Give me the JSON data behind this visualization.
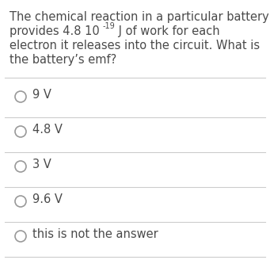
{
  "background_color": "#ffffff",
  "question_line1": "The chemical reaction in a particular battery",
  "question_line2_normal": "provides 4.8 10",
  "question_line2_super": "-19",
  "question_line2_end": " J of work for each",
  "question_line3": "electron it releases into the circuit. What is",
  "question_line4": "the battery’s emf?",
  "options": [
    "9 V",
    "4.8 V",
    "3 V",
    "9.6 V",
    "this is not the answer"
  ],
  "text_color": "#4a4a4a",
  "circle_color": "#999999",
  "line_color": "#cccccc",
  "font_size_question": 10.5,
  "font_size_options": 10.5,
  "font_size_super": 7.0
}
